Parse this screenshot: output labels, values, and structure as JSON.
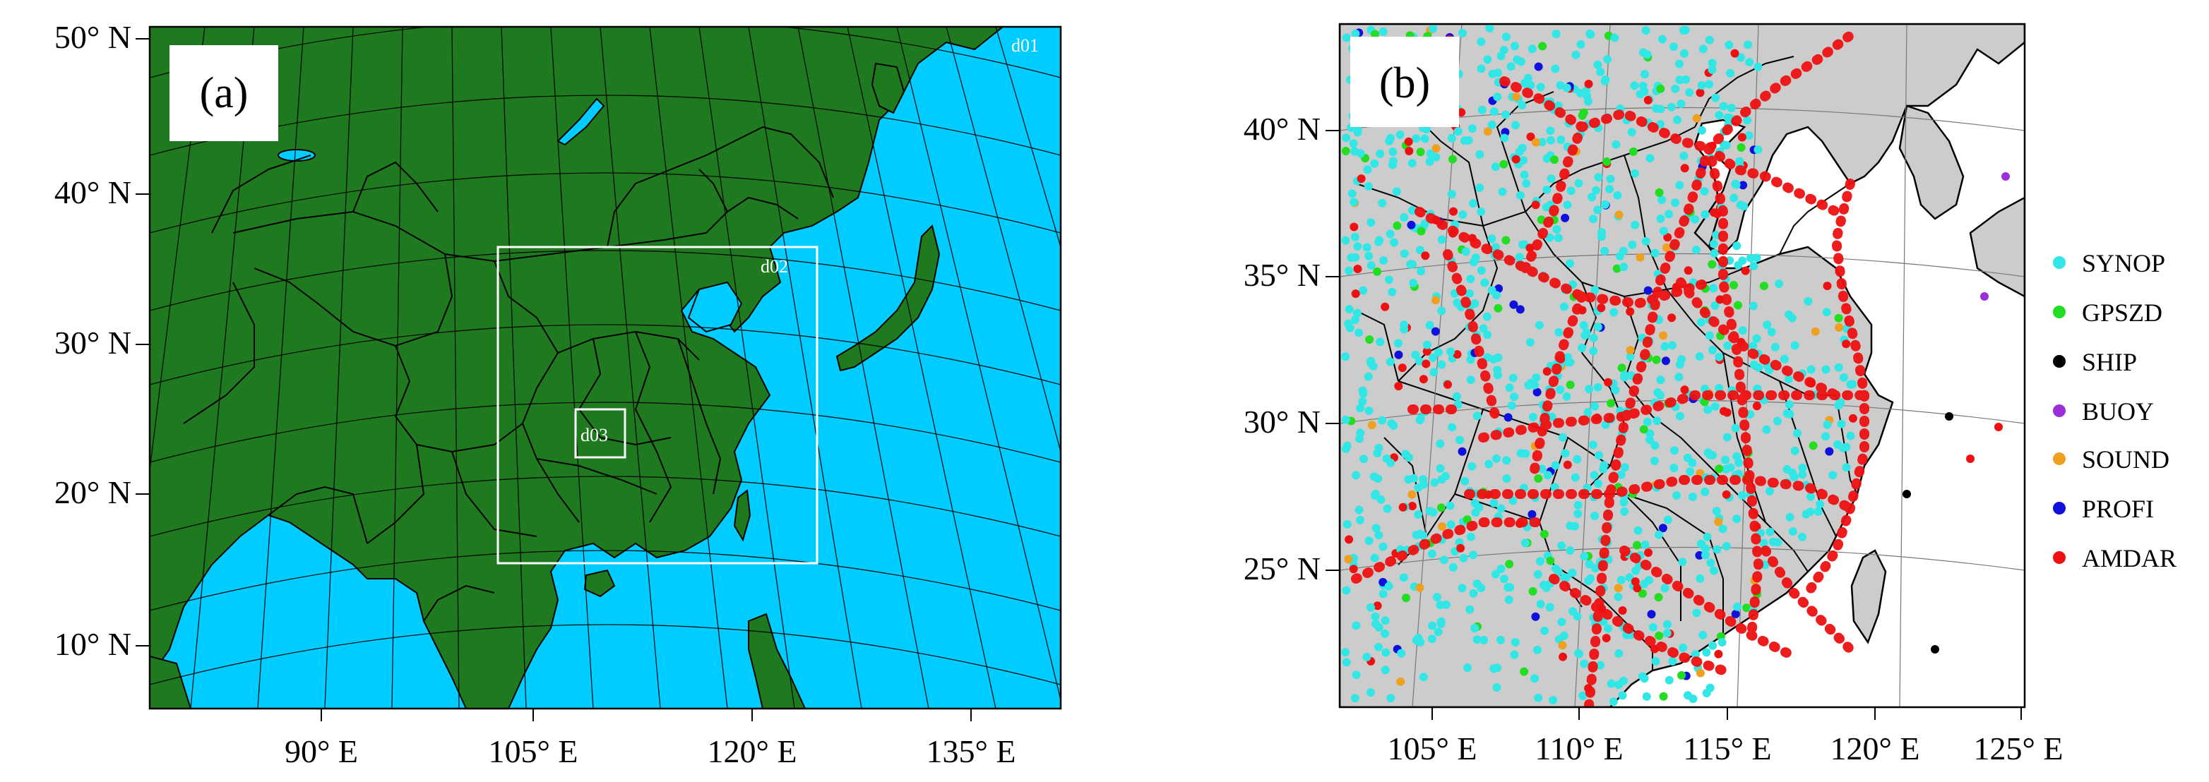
{
  "panel_a": {
    "label": "(a)",
    "domains": [
      "d01",
      "d02",
      "d03"
    ],
    "lat_labels": [
      "50° N",
      "40° N",
      "30° N",
      "20° N",
      "10° N"
    ],
    "lon_labels": [
      "90° E",
      "105° E",
      "120° E",
      "135° E"
    ]
  },
  "panel_b": {
    "label": "(b)",
    "lat_labels": [
      "40° N",
      "35° N",
      "30° N",
      "25° N"
    ],
    "lon_labels": [
      "105° E",
      "110° E",
      "115° E",
      "120° E",
      "125° E"
    ],
    "legend": [
      {
        "label": "SYNOP",
        "color": "#33e6e6"
      },
      {
        "label": "GPSZD",
        "color": "#22dd22"
      },
      {
        "label": "SHIP",
        "color": "#000000"
      },
      {
        "label": "BUOY",
        "color": "#9b30d9"
      },
      {
        "label": "SOUND",
        "color": "#f0a020"
      },
      {
        "label": "PROFI",
        "color": "#1010dd"
      },
      {
        "label": "AMDAR",
        "color": "#ee1111"
      }
    ]
  },
  "colors": {
    "land_a": "#1f7a1f",
    "ocean_a": "#00ccff",
    "land_b": "#cccccc",
    "ocean_b": "#ffffff"
  }
}
